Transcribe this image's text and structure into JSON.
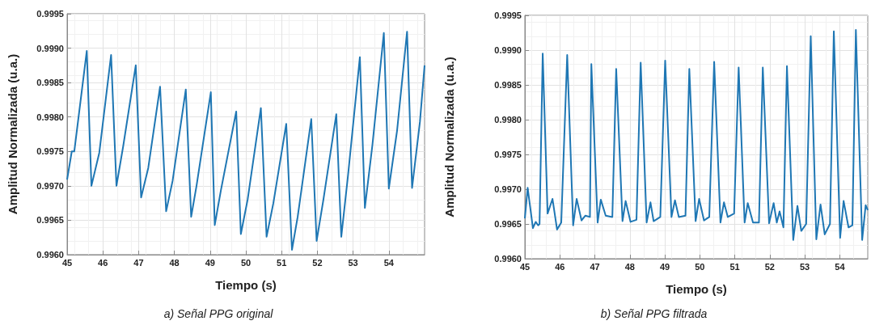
{
  "chart_data": [
    {
      "type": "line",
      "title": "a) Señal PPG original",
      "xlabel": "Tiempo (s)",
      "ylabel": "Amplitud Normalizada (u.a.)",
      "xlim": [
        45,
        55
      ],
      "ylim": [
        0.996,
        0.9995
      ],
      "xticks": [
        45,
        46,
        47,
        48,
        49,
        50,
        51,
        52,
        53,
        54
      ],
      "yticks": [
        {
          "value": 0.996,
          "label": "0.9960"
        },
        0.9965,
        {
          "value": 0.997,
          "label": "0.9970"
        },
        0.9975,
        {
          "value": 0.998,
          "label": "0.9980"
        },
        0.9985,
        {
          "value": 0.999,
          "label": "0.9990"
        },
        0.9995
      ],
      "grid": true,
      "marker": "none",
      "line_style": "solid",
      "series": [
        {
          "color": "#1f77b4",
          "x": [
            45,
            45.13,
            45.2,
            45.55,
            45.68,
            45.9,
            46.23,
            46.38,
            46.57,
            46.92,
            47.07,
            47.27,
            47.6,
            47.77,
            47.95,
            48.32,
            48.47,
            48.62,
            49.02,
            49.13,
            49.3,
            49.73,
            49.86,
            50.05,
            50.42,
            50.58,
            50.77,
            51.13,
            51.29,
            51.45,
            51.83,
            51.98,
            52.17,
            52.53,
            52.67,
            52.86,
            53.19,
            53.33,
            53.54,
            53.86,
            54.0,
            54.23,
            54.51,
            54.65,
            54.87,
            55.0
          ],
          "values": [
            0.99709,
            0.9975,
            0.9975,
            0.99896,
            0.997,
            0.99748,
            0.9989,
            0.997,
            0.99758,
            0.99875,
            0.99683,
            0.99726,
            0.99844,
            0.99663,
            0.99707,
            0.9984,
            0.99655,
            0.997,
            0.99836,
            0.99643,
            0.99693,
            0.99808,
            0.9963,
            0.9968,
            0.99813,
            0.99626,
            0.99675,
            0.9979,
            0.99607,
            0.99655,
            0.99797,
            0.9962,
            0.9968,
            0.99804,
            0.99626,
            0.99716,
            0.99887,
            0.99668,
            0.99759,
            0.99922,
            0.99696,
            0.9978,
            0.99924,
            0.99697,
            0.99793,
            0.99875
          ]
        }
      ]
    },
    {
      "type": "line",
      "title": "b) Señal PPG filtrada",
      "xlabel": "Tiempo (s)",
      "ylabel": "Amplitud Normalizada (u.a.)",
      "xlim": [
        45,
        54.8
      ],
      "ylim": [
        0.996,
        0.9995
      ],
      "xticks": [
        45,
        46,
        47,
        48,
        49,
        50,
        51,
        52,
        53,
        54
      ],
      "yticks": [
        {
          "value": 0.996,
          "label": "0.9960"
        },
        0.9965,
        {
          "value": 0.997,
          "label": "0.9970"
        },
        0.9975,
        {
          "value": 0.998,
          "label": "0.9980"
        },
        0.9985,
        {
          "value": 0.999,
          "label": "0.9990"
        },
        0.9995
      ],
      "grid": true,
      "marker": "none",
      "line_style": "solid",
      "series": [
        {
          "color": "#1f77b4",
          "x": [
            45,
            45.08,
            45.23,
            45.31,
            45.38,
            45.42,
            45.51,
            45.65,
            45.79,
            45.92,
            46.04,
            46.21,
            46.38,
            46.48,
            46.62,
            46.73,
            46.86,
            46.9,
            47.08,
            47.17,
            47.31,
            47.5,
            47.61,
            47.79,
            47.88,
            48.02,
            48.19,
            48.31,
            48.48,
            48.59,
            48.68,
            48.87,
            49.01,
            49.19,
            49.29,
            49.4,
            49.59,
            49.7,
            49.88,
            49.98,
            50.12,
            50.27,
            50.41,
            50.59,
            50.69,
            50.8,
            50.98,
            51.11,
            51.28,
            51.37,
            51.52,
            51.69,
            51.8,
            51.98,
            52.11,
            52.2,
            52.28,
            52.39,
            52.49,
            52.67,
            52.79,
            52.9,
            53.04,
            53.17,
            53.33,
            53.45,
            53.57,
            53.72,
            53.83,
            54.01,
            54.11,
            54.25,
            54.36,
            54.46,
            54.64,
            54.74,
            54.8
          ],
          "values": [
            0.99658,
            0.99702,
            0.99644,
            0.99653,
            0.99648,
            0.9965,
            0.99895,
            0.99665,
            0.99686,
            0.99642,
            0.99652,
            0.99893,
            0.99648,
            0.99686,
            0.99655,
            0.99662,
            0.9966,
            0.9988,
            0.99652,
            0.99685,
            0.99662,
            0.9966,
            0.99873,
            0.99654,
            0.99683,
            0.99653,
            0.99656,
            0.99882,
            0.99652,
            0.99681,
            0.99654,
            0.9966,
            0.99885,
            0.9966,
            0.99684,
            0.9966,
            0.99662,
            0.99873,
            0.99654,
            0.99686,
            0.99655,
            0.9966,
            0.99883,
            0.99652,
            0.99681,
            0.9966,
            0.99665,
            0.99875,
            0.99652,
            0.9968,
            0.99652,
            0.99652,
            0.99875,
            0.99651,
            0.9968,
            0.99652,
            0.99668,
            0.99645,
            0.99877,
            0.99627,
            0.99676,
            0.9964,
            0.9965,
            0.9992,
            0.99628,
            0.99678,
            0.99635,
            0.9965,
            0.99927,
            0.9963,
            0.99683,
            0.99645,
            0.99648,
            0.99929,
            0.99627,
            0.99677,
            0.9967
          ]
        }
      ]
    }
  ]
}
